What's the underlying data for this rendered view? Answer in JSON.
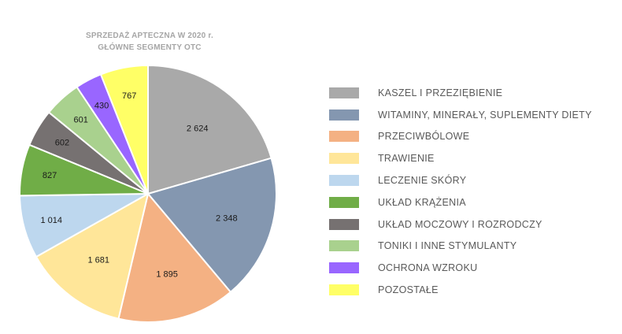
{
  "chart_data": {
    "type": "pie",
    "title": "SPRZEDAŻ APTECZNA W 2020 r.",
    "subtitle": "GŁÓWNE SEGMENTY OTC",
    "legend_position": "right",
    "slices": [
      {
        "name": "KASZEL I PRZEZIĘBIENIE",
        "value": 2624,
        "label": "2 624",
        "color": "#a9a9a9"
      },
      {
        "name": "WITAMINY, MINERAŁY, SUPLEMENTY DIETY",
        "value": 2348,
        "label": "2 348",
        "color": "#8497b0"
      },
      {
        "name": "PRZECIWBÓLOWE",
        "value": 1895,
        "label": "1 895",
        "color": "#f4b183"
      },
      {
        "name": "TRAWIENIE",
        "value": 1681,
        "label": "1 681",
        "color": "#ffe699"
      },
      {
        "name": "LECZENIE SKÓRY",
        "value": 1014,
        "label": "1 014",
        "color": "#bdd7ee"
      },
      {
        "name": "UKŁAD KRĄŻENIA",
        "value": 827,
        "label": "827",
        "color": "#70ad47"
      },
      {
        "name": "UKŁAD MOCZOWY I ROZRODCZY",
        "value": 602,
        "label": "602",
        "color": "#767171"
      },
      {
        "name": "TONIKI I INNE STYMULANTY",
        "value": 601,
        "label": "601",
        "color": "#a9d18e"
      },
      {
        "name": "OCHRONA WZROKU",
        "value": 430,
        "label": "430",
        "color": "#9966ff"
      },
      {
        "name": "POZOSTAŁE",
        "value": 767,
        "label": "767",
        "color": "#ffff66"
      }
    ]
  }
}
